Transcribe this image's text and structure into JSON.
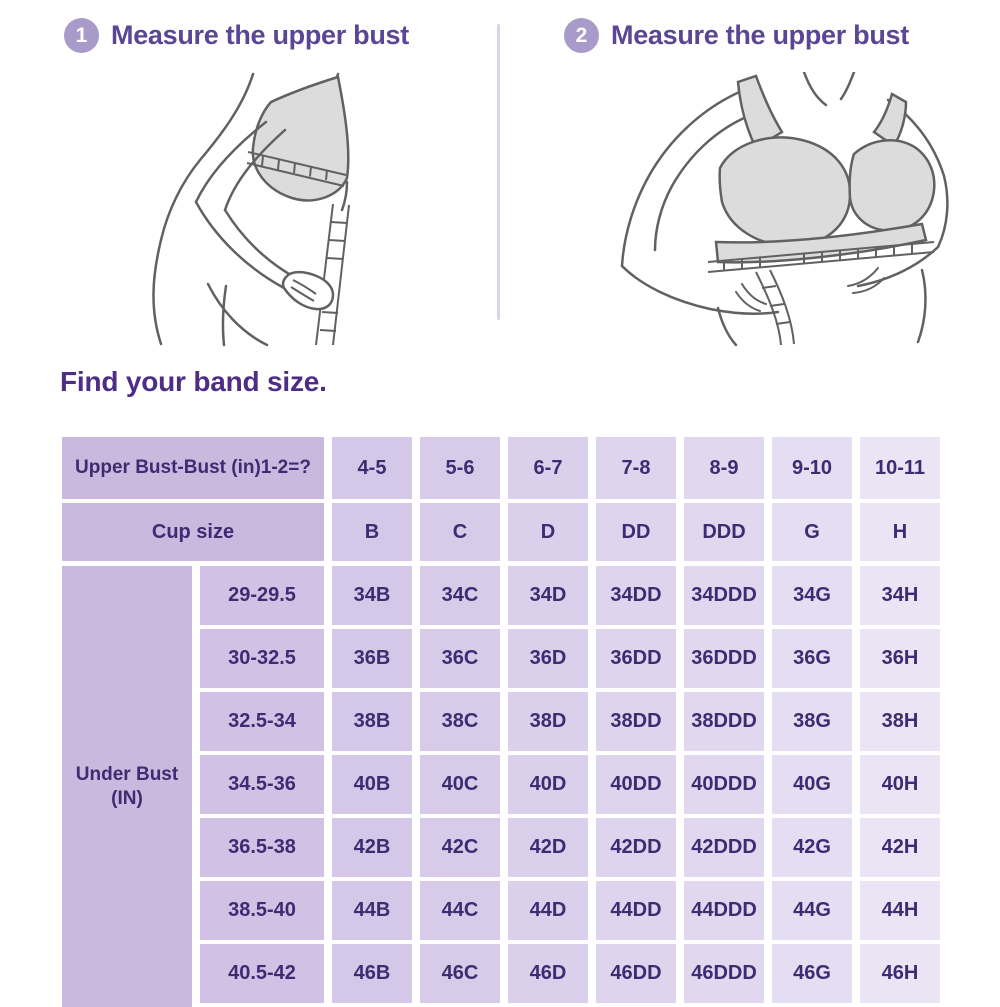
{
  "steps": [
    {
      "number": "1",
      "title": "Measure the upper bust"
    },
    {
      "number": "2",
      "title": "Measure the upper bust"
    }
  ],
  "section_title": "Find your band size.",
  "table": {
    "diff_header_label": "Upper Bust-Bust (in)1-2=?",
    "diff_values": [
      "4-5",
      "5-6",
      "6-7",
      "7-8",
      "8-9",
      "9-10",
      "10-11"
    ],
    "cup_header_label": "Cup size",
    "cup_values": [
      "B",
      "C",
      "D",
      "DD",
      "DDD",
      "G",
      "H"
    ],
    "underbust_label_line1": "Under Bust",
    "underbust_label_line2": "(IN)",
    "rows": [
      {
        "band": "29-29.5",
        "sizes": [
          "34B",
          "34C",
          "34D",
          "34DD",
          "34DDD",
          "34G",
          "34H"
        ]
      },
      {
        "band": "30-32.5",
        "sizes": [
          "36B",
          "36C",
          "36D",
          "36DD",
          "36DDD",
          "36G",
          "36H"
        ]
      },
      {
        "band": "32.5-34",
        "sizes": [
          "38B",
          "38C",
          "38D",
          "38DD",
          "38DDD",
          "38G",
          "38H"
        ]
      },
      {
        "band": "34.5-36",
        "sizes": [
          "40B",
          "40C",
          "40D",
          "40DD",
          "40DDD",
          "40G",
          "40H"
        ]
      },
      {
        "band": "36.5-38",
        "sizes": [
          "42B",
          "42C",
          "42D",
          "42DD",
          "42DDD",
          "42G",
          "42H"
        ]
      },
      {
        "band": "38.5-40",
        "sizes": [
          "44B",
          "44C",
          "44D",
          "44DD",
          "44DDD",
          "44G",
          "44H"
        ]
      },
      {
        "band": "40.5-42",
        "sizes": [
          "46B",
          "46C",
          "46D",
          "46DD",
          "46DDD",
          "46G",
          "46H"
        ]
      }
    ]
  },
  "colors": {
    "title_purple": "#5b4695",
    "section_title_purple": "#4e2d86",
    "badge_purple": "#a89bc9",
    "table_text": "#3e2b72",
    "cell_dark": "#c9b9df",
    "cell_light": "#eae4f5",
    "divider": "#dcd5ea",
    "illustration_gray": "#dcdcdc",
    "line_gray": "#616161"
  }
}
